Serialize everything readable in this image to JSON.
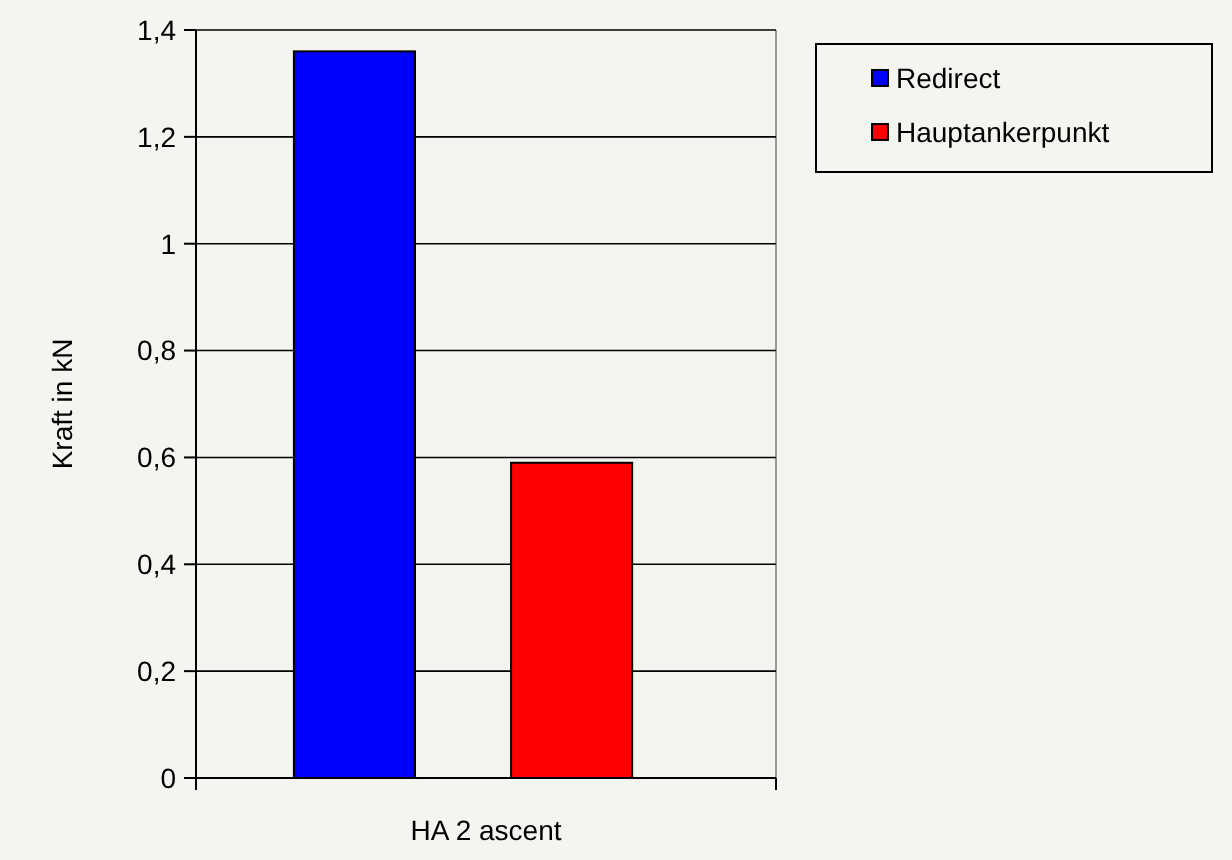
{
  "chart_data": {
    "type": "bar",
    "ylabel": "Kraft in kN",
    "categories": [
      "HA 2 ascent"
    ],
    "series": [
      {
        "name": "Redirect",
        "color": "#0000ff",
        "values": [
          1.36
        ]
      },
      {
        "name": "Hauptankerpunkt",
        "color": "#ff0000",
        "values": [
          0.59
        ]
      }
    ],
    "ylim": [
      0,
      1.4
    ],
    "yticks": [
      {
        "value": 0,
        "label": "0"
      },
      {
        "value": 0.2,
        "label": "0,2"
      },
      {
        "value": 0.4,
        "label": "0,4"
      },
      {
        "value": 0.6,
        "label": "0,6"
      },
      {
        "value": 0.8,
        "label": "0,8"
      },
      {
        "value": 1,
        "label": "1"
      },
      {
        "value": 1.2,
        "label": "1,2"
      },
      {
        "value": 1.4,
        "label": "1,4"
      }
    ],
    "grid": "y",
    "legend": "top right"
  }
}
